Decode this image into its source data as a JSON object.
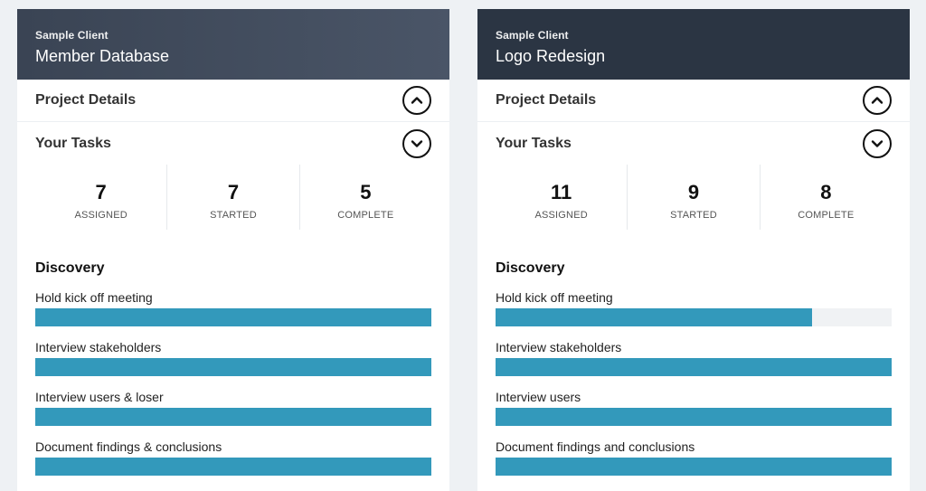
{
  "cards": [
    {
      "client": "Sample Client",
      "project": "Member Database",
      "details_label": "Project Details",
      "tasks_label": "Your Tasks",
      "stats": [
        {
          "value": "7",
          "label": "ASSIGNED"
        },
        {
          "value": "7",
          "label": "STARTED"
        },
        {
          "value": "5",
          "label": "COMPLETE"
        }
      ],
      "phase": "Discovery",
      "tasks": [
        {
          "name": "Hold kick off meeting",
          "progress": 1.0
        },
        {
          "name": "Interview stakeholders",
          "progress": 1.0
        },
        {
          "name": "Interview users & loser",
          "progress": 1.0
        },
        {
          "name": "Document findings & conclusions",
          "progress": 1.0
        }
      ]
    },
    {
      "client": "Sample Client",
      "project": "Logo Redesign",
      "details_label": "Project Details",
      "tasks_label": "Your Tasks",
      "stats": [
        {
          "value": "11",
          "label": "ASSIGNED"
        },
        {
          "value": "9",
          "label": "STARTED"
        },
        {
          "value": "8",
          "label": "COMPLETE"
        }
      ],
      "phase": "Discovery",
      "tasks": [
        {
          "name": "Hold kick off meeting",
          "progress": 0.8
        },
        {
          "name": "Interview stakeholders",
          "progress": 1.0
        },
        {
          "name": "Interview users",
          "progress": 1.0
        },
        {
          "name": "Document findings and conclusions",
          "progress": 1.0
        }
      ]
    }
  ],
  "icons": {
    "details_toggle": "chevron-up-icon",
    "tasks_toggle": "chevron-down-icon"
  },
  "colors": {
    "progress_fill": "#3399bb",
    "progress_track": "#f0f2f4"
  }
}
